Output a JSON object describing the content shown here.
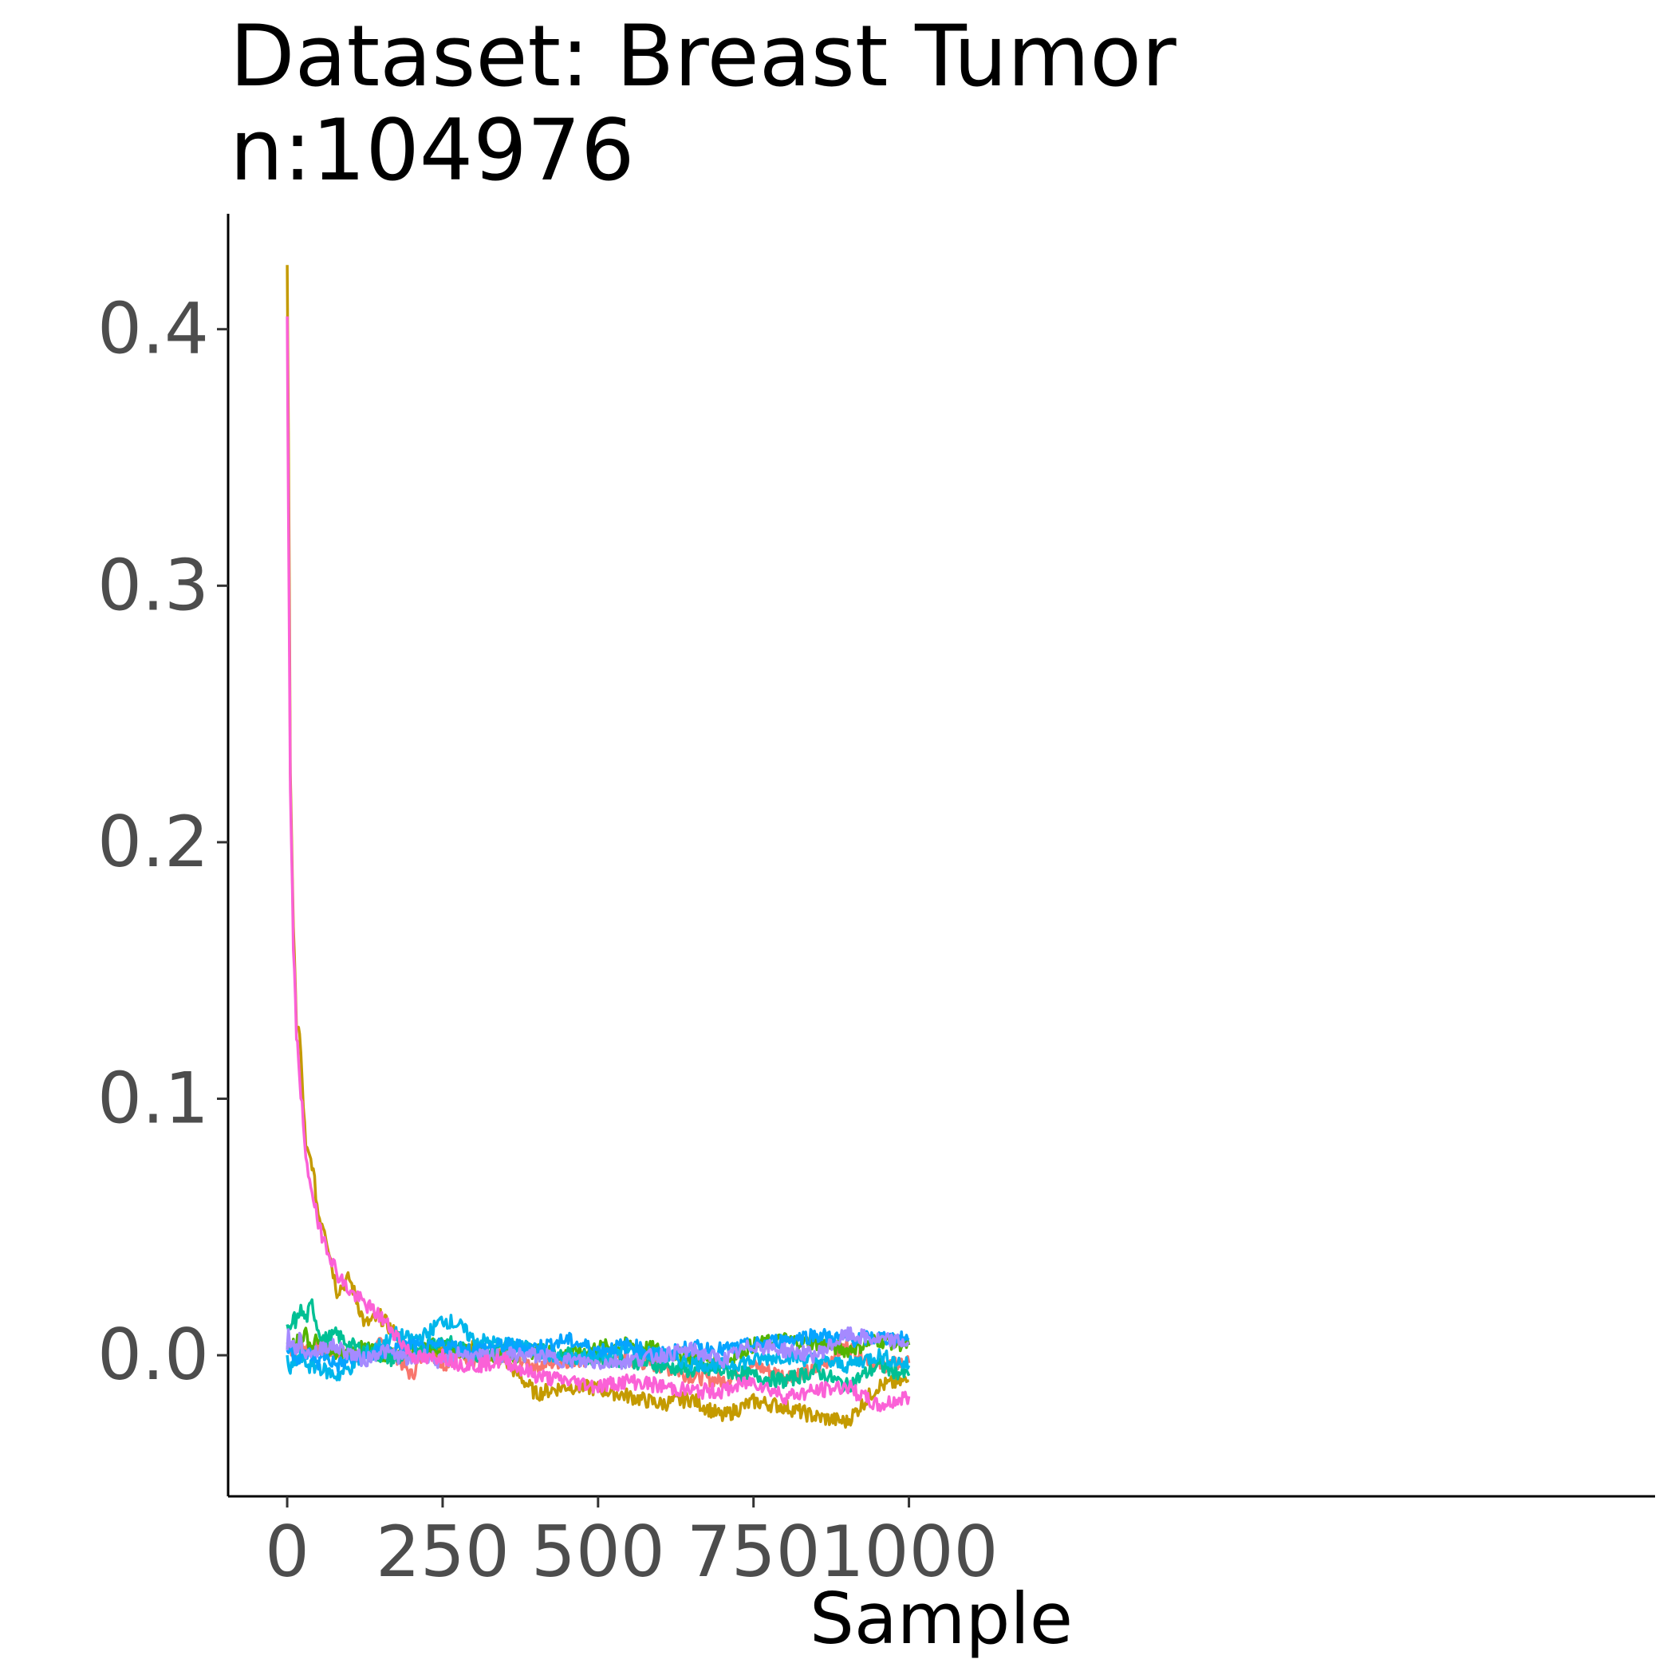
{
  "chart_data": {
    "type": "line",
    "title": "Dataset: Breast Tumor",
    "subtitle": "n:104976",
    "xlabel": "Sample",
    "ylabel": "",
    "xlim": [
      -95,
      2200
    ],
    "ylim": [
      -0.055,
      0.445
    ],
    "x_ticks": [
      0,
      250,
      500,
      750,
      1000
    ],
    "x_tick_labels": [
      "0",
      "250",
      "500",
      "750",
      "1000"
    ],
    "y_ticks": [
      0.0,
      0.1,
      0.2,
      0.3,
      0.4
    ],
    "y_tick_labels": [
      "0.0",
      "0.1",
      "0.2",
      "0.3",
      "0.4"
    ],
    "grid": false,
    "legend": "none",
    "x_values": [
      0,
      2,
      5,
      10,
      15,
      20,
      30,
      40,
      50,
      60,
      80,
      100,
      125,
      150,
      175,
      200,
      225,
      250,
      275,
      300,
      350,
      400,
      450,
      500,
      550,
      600,
      650,
      700,
      750,
      800,
      850,
      900,
      950,
      1000
    ],
    "series": [
      {
        "color": "#F8766D",
        "values": [
          0.003,
          0.004,
          0.002,
          0.003,
          0.002,
          0.004,
          0.003,
          0.002,
          0.003,
          0.001,
          0.002,
          0.0,
          0.001,
          0.004,
          0.0,
          -0.008,
          0.003,
          -0.004,
          0.001,
          -0.002,
          0.0,
          -0.004,
          -0.002,
          -0.001,
          -0.002,
          -0.004,
          -0.008,
          -0.01,
          -0.004,
          -0.008,
          -0.006,
          0.004,
          -0.004,
          -0.003
        ]
      },
      {
        "color": "#C49A00",
        "values": [
          0.425,
          0.36,
          0.23,
          0.165,
          0.13,
          0.125,
          0.08,
          0.075,
          0.055,
          0.05,
          0.025,
          0.03,
          0.012,
          0.015,
          0.008,
          0.0,
          0.003,
          0.002,
          0.001,
          0.003,
          -0.002,
          -0.015,
          -0.012,
          -0.013,
          -0.016,
          -0.019,
          -0.017,
          -0.024,
          -0.018,
          -0.02,
          -0.024,
          -0.026,
          -0.012,
          -0.01
        ]
      },
      {
        "color": "#53B400",
        "values": [
          0.005,
          0.004,
          0.006,
          0.004,
          0.006,
          0.007,
          0.008,
          0.003,
          0.007,
          0.002,
          0.0,
          0.001,
          0.003,
          0.0,
          0.001,
          0.002,
          0.004,
          0.003,
          0.002,
          0.002,
          -0.001,
          0.002,
          0.0,
          0.003,
          0.004,
          0.002,
          -0.001,
          -0.003,
          0.004,
          0.006,
          0.005,
          0.002,
          0.006,
          0.004
        ]
      },
      {
        "color": "#00C094",
        "values": [
          0.012,
          0.01,
          0.008,
          0.015,
          0.012,
          0.018,
          0.014,
          0.02,
          0.01,
          0.006,
          0.008,
          0.004,
          0.002,
          0.0,
          -0.002,
          0.002,
          0.004,
          0.006,
          0.003,
          0.0,
          0.004,
          0.002,
          0.0,
          -0.001,
          -0.002,
          -0.004,
          -0.006,
          -0.006,
          -0.008,
          -0.01,
          -0.006,
          -0.012,
          -0.004,
          -0.008
        ]
      },
      {
        "color": "#00B6EB",
        "values": [
          0.0,
          -0.004,
          -0.006,
          -0.004,
          -0.002,
          0.0,
          -0.003,
          -0.005,
          -0.004,
          -0.006,
          -0.008,
          -0.005,
          0.0,
          0.004,
          0.008,
          0.006,
          0.008,
          0.014,
          0.012,
          0.006,
          0.004,
          0.002,
          -0.002,
          0.0,
          0.002,
          0.0,
          -0.003,
          -0.004,
          -0.002,
          0.0,
          -0.002,
          -0.004,
          0.0,
          -0.004
        ]
      },
      {
        "color": "#06A4FF",
        "values": [
          0.002,
          0.001,
          0.003,
          0.001,
          0.0,
          -0.002,
          0.001,
          0.0,
          -0.003,
          0.0,
          -0.004,
          -0.002,
          -0.001,
          0.001,
          0.002,
          0.004,
          0.002,
          0.004,
          0.003,
          0.002,
          0.004,
          0.003,
          0.006,
          0.002,
          0.004,
          0.0,
          0.003,
          0.002,
          0.004,
          0.006,
          0.008,
          0.006,
          0.007,
          0.006
        ]
      },
      {
        "color": "#A58AFF",
        "values": [
          0.002,
          0.01,
          0.005,
          0.004,
          0.002,
          0.006,
          0.0,
          0.002,
          0.001,
          0.004,
          0.003,
          0.001,
          -0.002,
          0.002,
          0.0,
          -0.002,
          0.0,
          -0.003,
          0.001,
          -0.001,
          0.0,
          0.0,
          -0.002,
          -0.003,
          -0.002,
          0.0,
          0.002,
          -0.002,
          0.004,
          0.002,
          0.0,
          0.008,
          0.006,
          0.005
        ]
      },
      {
        "color": "#FB61D7",
        "values": [
          0.405,
          0.33,
          0.22,
          0.16,
          0.125,
          0.11,
          0.075,
          0.065,
          0.05,
          0.045,
          0.032,
          0.025,
          0.02,
          0.015,
          0.008,
          0.0,
          -0.002,
          0.0,
          -0.003,
          -0.004,
          -0.002,
          -0.008,
          -0.01,
          -0.012,
          -0.01,
          -0.012,
          -0.014,
          -0.014,
          -0.01,
          -0.016,
          -0.014,
          -0.012,
          -0.02,
          -0.016
        ]
      }
    ]
  }
}
